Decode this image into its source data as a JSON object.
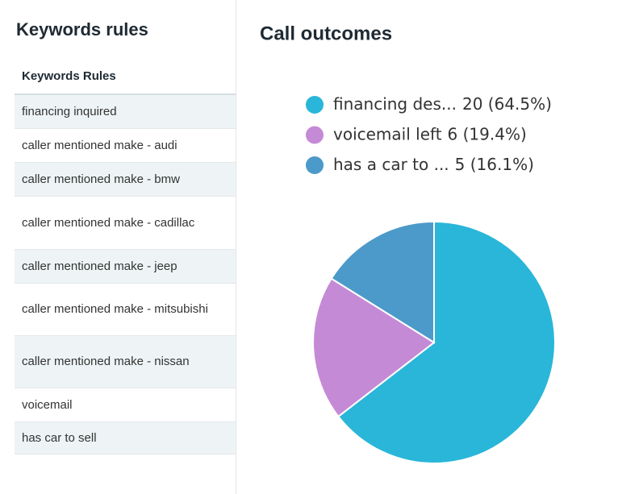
{
  "left_panel": {
    "title": "Keywords rules",
    "table": {
      "header": "Keywords Rules",
      "rows": [
        "financing inquired",
        "caller mentioned make - audi",
        "caller mentioned make - bmw",
        "caller mentioned make - cadillac",
        "caller mentioned make - jeep",
        "caller mentioned make - mitsubishi",
        "caller mentioned make - nissan",
        "voicemail",
        "has car to sell"
      ]
    }
  },
  "chart_data": {
    "type": "pie",
    "title": "Call outcomes",
    "categories": [
      "financing des...",
      "voicemail left",
      "has a car to ..."
    ],
    "values": [
      20,
      6,
      5
    ],
    "value_labels": [
      "20 (64.5%)",
      "6 (19.4%)",
      "5 (16.1%)"
    ],
    "colors": [
      "#29b6d9",
      "#c58ad6",
      "#4b9aca"
    ]
  }
}
